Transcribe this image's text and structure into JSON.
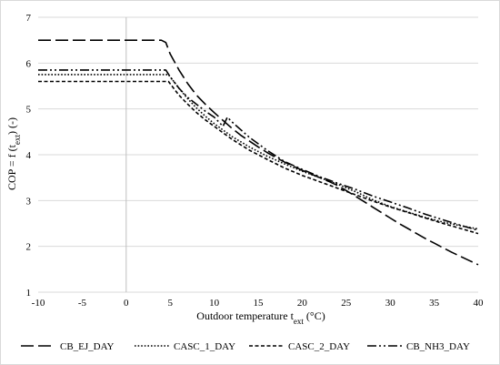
{
  "chart_data": {
    "type": "line",
    "title": "",
    "xlabel": {
      "main": "Outdoor temperature t",
      "sub": "ext",
      "tail": " (°C)"
    },
    "ylabel": {
      "main": "COP = f (t",
      "sub": "ext",
      "tail": ") (-)"
    },
    "xlim": [
      -10,
      40
    ],
    "ylim": [
      1,
      7
    ],
    "xticks": [
      -10,
      -5,
      0,
      5,
      10,
      15,
      20,
      25,
      30,
      35,
      40
    ],
    "yticks": [
      1,
      2,
      3,
      4,
      5,
      6,
      7
    ],
    "grid": "horizontal",
    "legend_position": "bottom",
    "series": [
      {
        "name": "CB_EJ_DAY",
        "style": "long-dash",
        "x": [
          -10,
          4,
          4.5,
          5,
          6,
          7,
          8,
          9,
          10,
          11,
          12,
          13,
          14,
          15,
          16,
          17,
          18,
          19,
          20,
          21,
          22,
          23,
          24,
          25,
          26,
          27,
          28,
          29,
          30,
          31,
          32,
          33,
          34,
          35,
          36,
          37,
          38,
          39,
          40
        ],
        "y": [
          6.5,
          6.5,
          6.45,
          6.2,
          5.85,
          5.55,
          5.3,
          5.1,
          4.92,
          4.75,
          4.58,
          4.43,
          4.3,
          4.17,
          4.05,
          3.94,
          3.84,
          3.75,
          3.66,
          3.58,
          3.5,
          3.42,
          3.33,
          3.22,
          3.1,
          2.98,
          2.86,
          2.74,
          2.62,
          2.5,
          2.39,
          2.28,
          2.17,
          2.07,
          1.97,
          1.87,
          1.78,
          1.69,
          1.6
        ]
      },
      {
        "name": "CASC_1_DAY",
        "style": "dotted",
        "x": [
          -10,
          4.8,
          5,
          6,
          7,
          8,
          9,
          10,
          12,
          14,
          16,
          18,
          20,
          22,
          24,
          26,
          28,
          30,
          32,
          34,
          36,
          38,
          40
        ],
        "y": [
          5.75,
          5.75,
          5.7,
          5.45,
          5.22,
          5.02,
          4.84,
          4.68,
          4.4,
          4.17,
          3.97,
          3.8,
          3.64,
          3.5,
          3.36,
          3.2,
          3.02,
          2.87,
          2.75,
          2.63,
          2.53,
          2.45,
          2.38
        ]
      },
      {
        "name": "CASC_2_DAY",
        "style": "short-dash",
        "x": [
          -10,
          4.8,
          5,
          6,
          7,
          8,
          9,
          10,
          12,
          14,
          16,
          18,
          20,
          22,
          24,
          26,
          28,
          30,
          32,
          34,
          36,
          38,
          40
        ],
        "y": [
          5.6,
          5.6,
          5.55,
          5.3,
          5.1,
          4.92,
          4.76,
          4.62,
          4.34,
          4.1,
          3.9,
          3.71,
          3.55,
          3.41,
          3.27,
          3.13,
          2.99,
          2.86,
          2.74,
          2.62,
          2.5,
          2.39,
          2.28
        ]
      },
      {
        "name": "CB_NH3_DAY",
        "style": "dash-dot-dot",
        "x": [
          -10,
          4.5,
          5,
          6,
          7,
          8,
          9,
          10,
          11,
          11.5,
          12,
          13,
          14,
          16,
          18,
          20,
          22,
          24,
          26,
          28,
          30,
          32,
          34,
          36,
          38,
          40
        ],
        "y": [
          5.85,
          5.85,
          5.7,
          5.45,
          5.25,
          5.1,
          4.95,
          4.82,
          4.62,
          4.82,
          4.72,
          4.55,
          4.38,
          4.1,
          3.85,
          3.68,
          3.52,
          3.38,
          3.25,
          3.1,
          2.97,
          2.84,
          2.7,
          2.58,
          2.46,
          2.35
        ]
      }
    ]
  }
}
